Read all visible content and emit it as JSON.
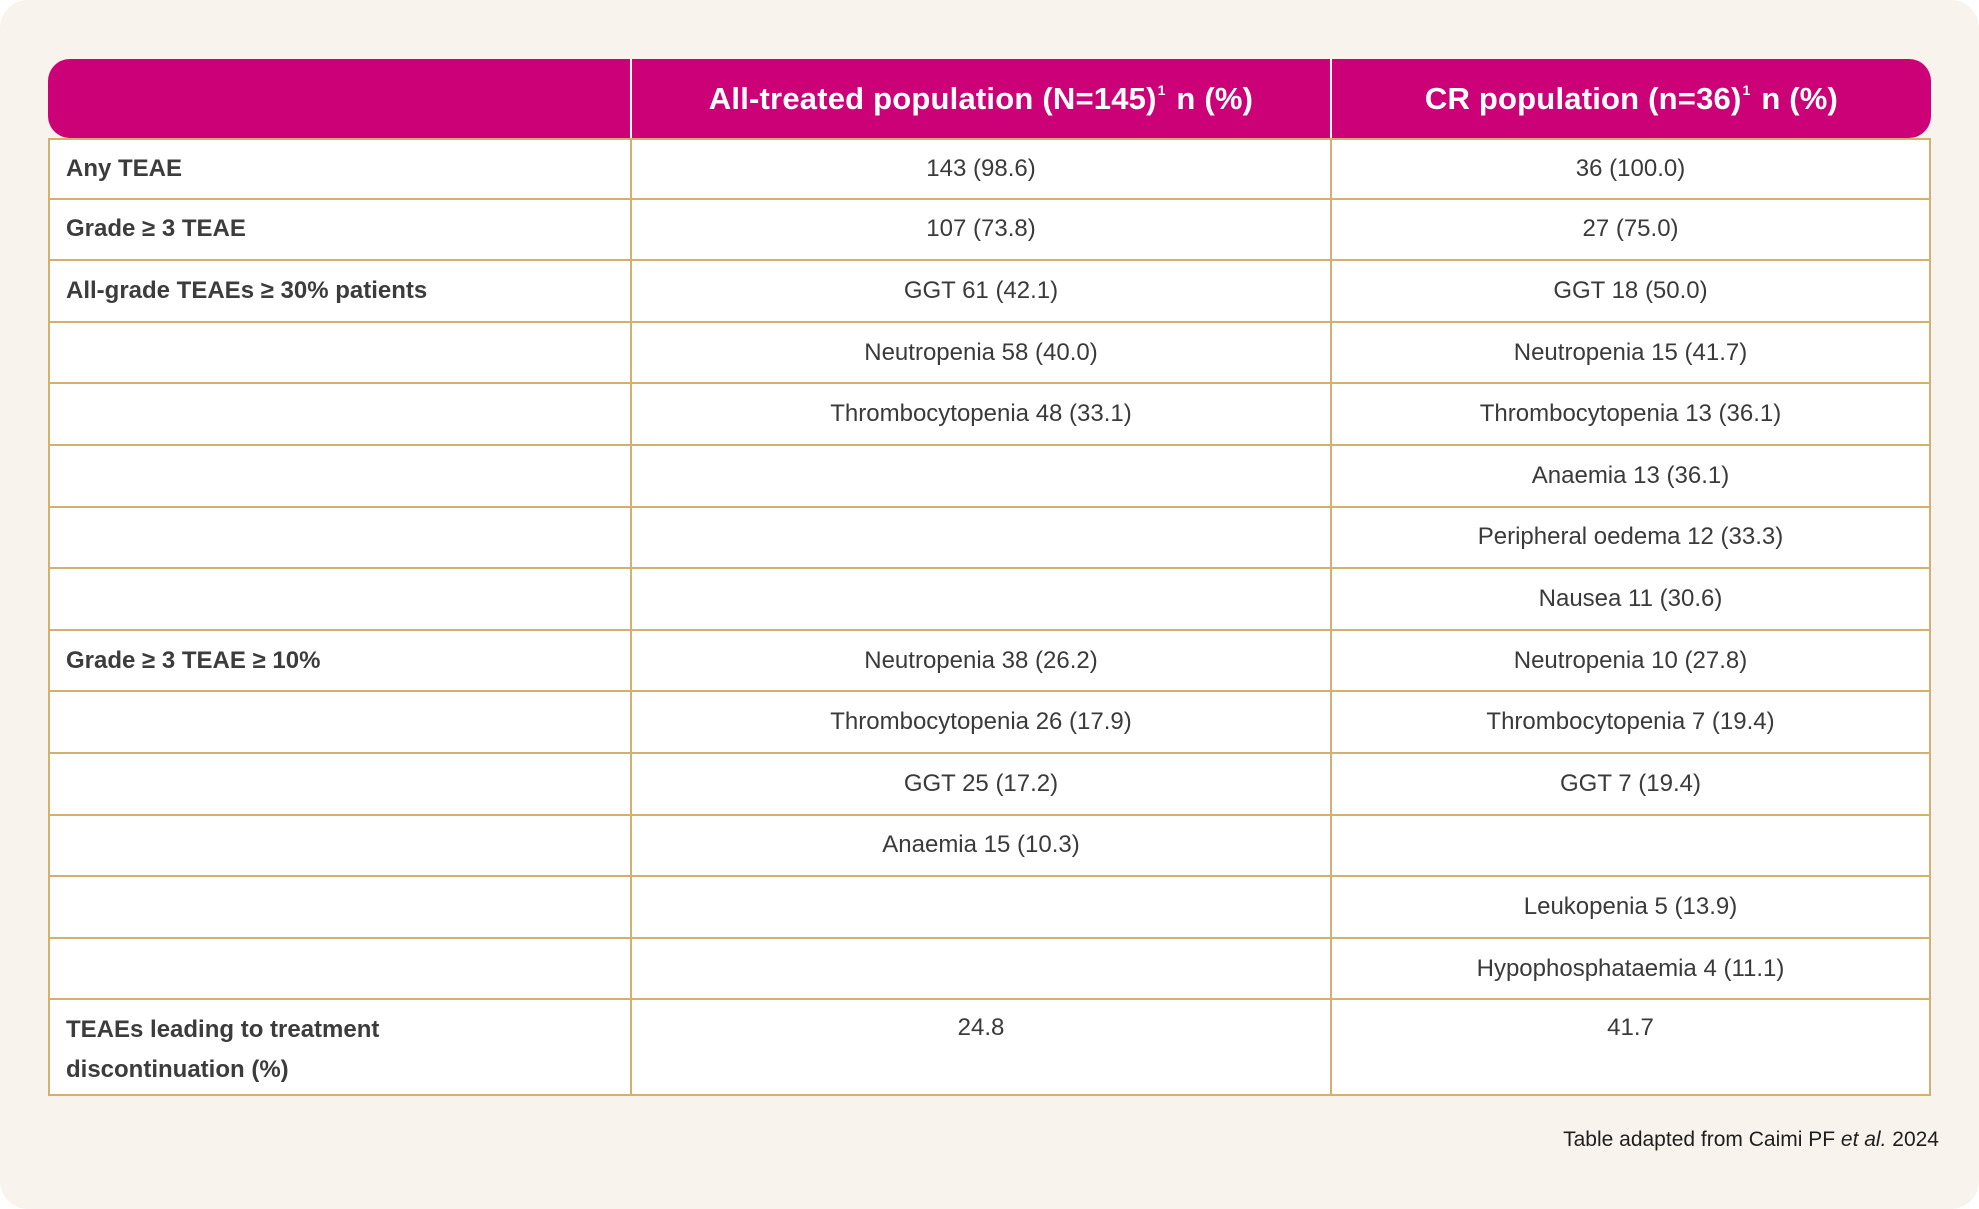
{
  "header": {
    "col1": "",
    "col2_main": "All-treated population (N=145)",
    "col2_sup": "1",
    "col2_unit": "n (%)",
    "col3_main": "CR population (n=36)",
    "col3_sup": "1",
    "col3_unit": "n (%)"
  },
  "rows": [
    {
      "label": "Any TEAE",
      "all": "143 (98.6)",
      "cr": "36 (100.0)"
    },
    {
      "label": "Grade ≥ 3 TEAE",
      "all": "107 (73.8)",
      "cr": "27 (75.0)"
    },
    {
      "label": "All-grade TEAEs ≥ 30% patients",
      "all": "GGT 61 (42.1)",
      "cr": "GGT 18 (50.0)"
    },
    {
      "label": "",
      "all": "Neutropenia 58 (40.0)",
      "cr": "Neutropenia 15 (41.7)"
    },
    {
      "label": "",
      "all": "Thrombocytopenia 48 (33.1)",
      "cr": "Thrombocytopenia 13 (36.1)"
    },
    {
      "label": "",
      "all": "",
      "cr": "Anaemia 13 (36.1)"
    },
    {
      "label": "",
      "all": "",
      "cr": "Peripheral oedema 12 (33.3)"
    },
    {
      "label": "",
      "all": "",
      "cr": "Nausea 11 (30.6)"
    },
    {
      "label": "Grade ≥ 3 TEAE ≥ 10%",
      "all": "Neutropenia 38 (26.2)",
      "cr": "Neutropenia 10 (27.8)"
    },
    {
      "label": "",
      "all": "Thrombocytopenia 26 (17.9)",
      "cr": "Thrombocytopenia 7 (19.4)"
    },
    {
      "label": "",
      "all": "GGT 25 (17.2)",
      "cr": "GGT 7 (19.4)"
    },
    {
      "label": "",
      "all": "Anaemia 15 (10.3)",
      "cr": ""
    },
    {
      "label": "",
      "all": "",
      "cr": "Leukopenia 5 (13.9)"
    },
    {
      "label": "",
      "all": "",
      "cr": "Hypophosphataemia 4 (11.1)"
    },
    {
      "label_line1": "TEAEs leading to treatment",
      "label_line2": "discontinuation (%)",
      "all": "24.8",
      "cr": "41.7"
    }
  ],
  "caption": {
    "prefix": "Table adapted from Caimi PF ",
    "italic": "et al.",
    "suffix": " 2024"
  }
}
